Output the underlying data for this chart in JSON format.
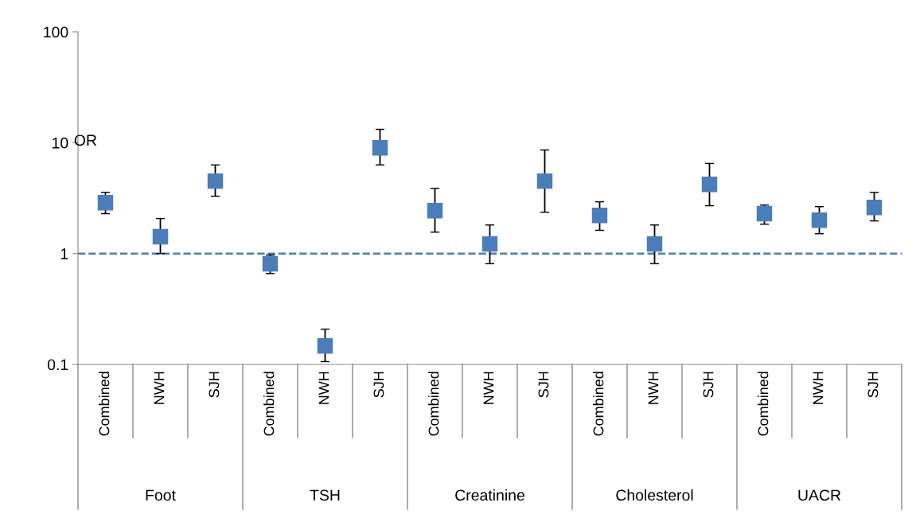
{
  "chart_data": {
    "type": "scatter",
    "ylabel": "OR",
    "categories": [
      "Combined",
      "NWH",
      "SJH",
      "Combined",
      "NWH",
      "SJH",
      "Combined",
      "NWH",
      "SJH",
      "Combined",
      "NWH",
      "SJH",
      "Combined",
      "NWH",
      "SJH"
    ],
    "annotations": [
      "Foot",
      "TSH",
      "Creatinine",
      "Cholesterol",
      "UACR"
    ],
    "series": [
      {
        "color": "#4a7ebb",
        "values": [
          2.88,
          1.42,
          4.5,
          0.81,
          0.147,
          9.0,
          2.44,
          1.22,
          4.5,
          2.21,
          1.22,
          4.2,
          2.29,
          2.0,
          2.6
        ],
        "errors": [
          [
            2.29,
            3.57
          ],
          [
            1.0,
            2.07
          ],
          [
            3.29,
            6.3
          ],
          [
            0.66,
            0.97
          ],
          [
            0.106,
            0.208
          ],
          [
            6.3,
            13.2
          ],
          [
            1.56,
            3.88
          ],
          [
            0.81,
            1.81
          ],
          [
            2.36,
            8.6
          ],
          [
            1.62,
            2.93
          ],
          [
            0.81,
            1.81
          ],
          [
            2.7,
            6.5
          ],
          [
            1.84,
            2.74
          ],
          [
            1.51,
            2.65
          ],
          [
            1.97,
            3.57
          ]
        ]
      }
    ],
    "log": "y",
    "ylim": [
      0.1,
      100
    ],
    "yticks": [
      0.1,
      1,
      10,
      100
    ],
    "ref_lines": [
      {
        "axis": "y",
        "value": 1,
        "color": "#4a7ebb",
        "line_style": "dashed"
      }
    ],
    "marker": "square",
    "grid": false
  }
}
